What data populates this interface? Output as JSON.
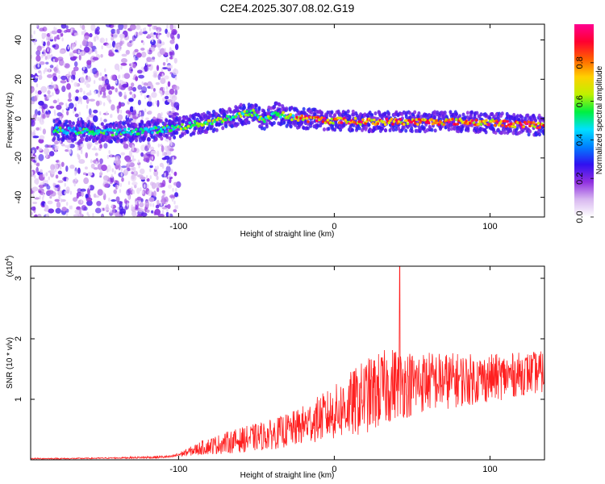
{
  "title": "C2E4.2025.307.08.02.G19",
  "chart_data": [
    {
      "type": "heatmap",
      "description_label": "spectrogram",
      "xlabel": "Height of straight line (km)",
      "ylabel": "Frequency (Hz)",
      "xlim": [
        -195,
        135
      ],
      "ylim": [
        -50,
        48
      ],
      "xticks": [
        -100,
        0,
        100
      ],
      "xtick_labels": [
        "-100",
        "0",
        "100"
      ],
      "yticks": [
        -40,
        -20,
        0,
        20,
        40
      ],
      "ytick_labels": [
        "-40",
        "-20",
        "0",
        "20",
        "40"
      ],
      "colorbar": {
        "label": "Normalized spectral amplitude",
        "range": [
          0,
          1
        ],
        "ticks": [
          0.0,
          0.2,
          0.4,
          0.6,
          0.8
        ],
        "tick_labels": [
          "0.0",
          "0.2",
          "0.4",
          "0.6",
          "0.8"
        ],
        "colors": [
          "#ffffff",
          "#d8b8f0",
          "#9030e0",
          "#3010f0",
          "#0080ff",
          "#00e0ff",
          "#00f040",
          "#c0f000",
          "#ffd000",
          "#ff6000",
          "#ff0030",
          "#ff0090"
        ]
      },
      "ridge_trace": {
        "x": [
          -178,
          -160,
          -140,
          -120,
          -105,
          -90,
          -75,
          -60,
          -52,
          -45,
          -38,
          -30,
          -20,
          0,
          20,
          40,
          60,
          80,
          100,
          120,
          135
        ],
        "y": [
          -6,
          -6.5,
          -7,
          -6,
          -5,
          -3,
          -1,
          2,
          3,
          -1,
          3,
          1,
          0,
          -1,
          -1.5,
          -1.5,
          -1.5,
          -1.5,
          -2,
          -3,
          -3.5
        ],
        "peak_amplitude_region_x": [
          -25,
          135
        ]
      },
      "noise_band_x": [
        -195,
        -100
      ]
    },
    {
      "type": "line",
      "xlabel": "Height of straight line (km)",
      "ylabel": "SNR (10 * v/v)",
      "y_scale_label": "(x10",
      "y_scale_exp": "4",
      "y_scale_close": ")",
      "xlim": [
        -195,
        135
      ],
      "ylim": [
        0,
        3.2
      ],
      "xticks": [
        -100,
        0,
        100
      ],
      "xtick_labels": [
        "-100",
        "0",
        "100"
      ],
      "yticks": [
        1,
        2,
        3
      ],
      "ytick_labels": [
        "1",
        "2",
        "3"
      ],
      "series": [
        {
          "name": "SNR",
          "color": "#ff2020",
          "x": [
            -195,
            -170,
            -140,
            -120,
            -105,
            -95,
            -85,
            -70,
            -55,
            -40,
            -25,
            -10,
            0,
            10,
            20,
            30,
            40,
            50,
            60,
            70,
            80,
            90,
            100,
            110,
            120,
            135
          ],
          "y": [
            0.02,
            0.02,
            0.03,
            0.04,
            0.05,
            0.12,
            0.2,
            0.28,
            0.35,
            0.42,
            0.52,
            0.68,
            0.78,
            0.9,
            1.05,
            1.15,
            1.28,
            1.25,
            1.3,
            1.3,
            1.32,
            1.33,
            1.35,
            1.38,
            1.42,
            1.45
          ],
          "spread": [
            0.01,
            0.01,
            0.01,
            0.02,
            0.02,
            0.06,
            0.12,
            0.18,
            0.22,
            0.25,
            0.3,
            0.38,
            0.45,
            0.55,
            0.62,
            0.65,
            0.6,
            0.55,
            0.5,
            0.48,
            0.45,
            0.42,
            0.4,
            0.38,
            0.36,
            0.35
          ],
          "peak": {
            "x": 42,
            "y": 3.2
          }
        }
      ]
    }
  ]
}
